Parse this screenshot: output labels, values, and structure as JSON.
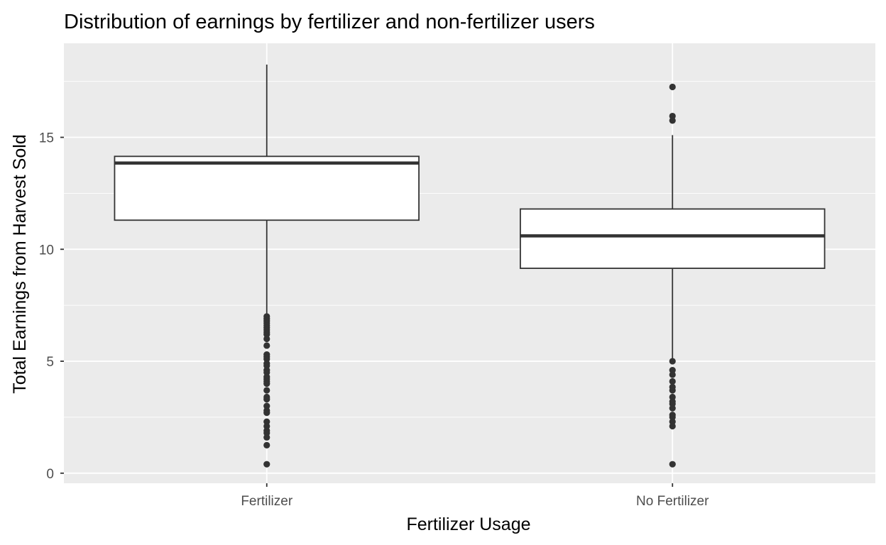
{
  "chart_data": {
    "type": "boxplot",
    "title": "Distribution of earnings by fertilizer and non-fertilizer users",
    "xlabel": "Fertilizer Usage",
    "ylabel": "Total Earnings from Harvest Sold",
    "categories": [
      "Fertilizer",
      "No Fertilizer"
    ],
    "ylim": [
      -0.45,
      19.2
    ],
    "yticks": [
      0,
      5,
      10,
      15
    ],
    "y_tick_labels": [
      "0",
      "5",
      "10",
      "15"
    ],
    "grid": true,
    "panel_background": "#ebebeb",
    "grid_color": "#ffffff",
    "box_fill": "#ffffff",
    "line_color": "#333333",
    "boxes": [
      {
        "category": "Fertilizer",
        "whisker_low": 7.05,
        "q1": 11.3,
        "median": 13.85,
        "q3": 14.15,
        "whisker_high": 18.25,
        "outliers": [
          7.0,
          6.9,
          6.8,
          6.7,
          6.6,
          6.5,
          6.4,
          6.3,
          6.2,
          6.0,
          5.7,
          5.3,
          5.2,
          5.1,
          4.9,
          4.8,
          4.6,
          4.5,
          4.3,
          4.2,
          4.1,
          4.0,
          3.7,
          3.4,
          3.3,
          3.0,
          2.8,
          2.7,
          2.3,
          2.1,
          1.9,
          1.8,
          1.6,
          1.25,
          0.4
        ]
      },
      {
        "category": "No Fertilizer",
        "whisker_low": 5.05,
        "q1": 9.15,
        "median": 10.6,
        "q3": 11.8,
        "whisker_high": 15.1,
        "outliers": [
          17.25,
          15.95,
          15.75,
          5.0,
          4.6,
          4.4,
          4.1,
          3.85,
          3.7,
          3.4,
          3.2,
          3.1,
          2.9,
          2.6,
          2.5,
          2.3,
          2.1,
          0.4
        ]
      }
    ]
  }
}
